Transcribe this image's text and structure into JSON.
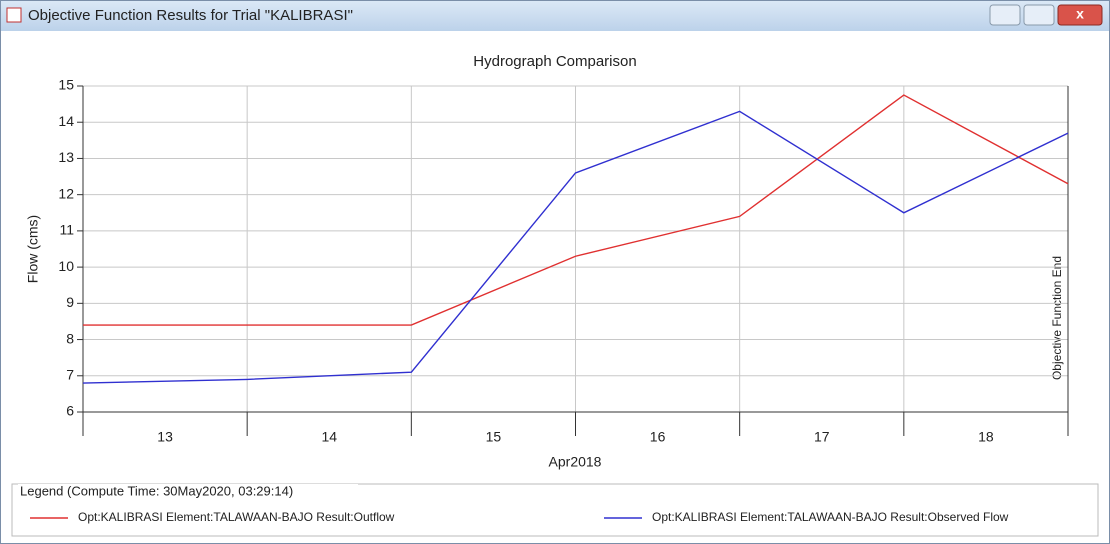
{
  "window": {
    "title": "Objective Function Results for Trial \"KALIBRASI\""
  },
  "chart_data": {
    "type": "line",
    "title": "Hydrograph Comparison",
    "xlabel": "Apr2018",
    "ylabel": "Flow (cms)",
    "annotation": "Objective Function End",
    "legend_title": "Legend (Compute Time: 30May2020, 03:29:14)",
    "x": [
      13,
      14,
      15,
      16,
      17,
      18,
      19
    ],
    "xlim": [
      13,
      19
    ],
    "xticks": [
      13,
      14,
      15,
      16,
      17,
      18
    ],
    "ylim": [
      6,
      15
    ],
    "yticks": [
      6,
      7,
      8,
      9,
      10,
      11,
      12,
      13,
      14,
      15
    ],
    "grid": true,
    "legend": "bottom",
    "series": [
      {
        "name": "Opt:KALIBRASI Element:TALAWAAN-BAJO Result:Outflow",
        "color": "#e03030",
        "values": [
          8.4,
          8.4,
          8.4,
          10.3,
          11.4,
          14.75,
          12.3
        ]
      },
      {
        "name": "Opt:KALIBRASI Element:TALAWAAN-BAJO Result:Observed Flow",
        "color": "#3030d0",
        "values": [
          6.8,
          6.9,
          7.1,
          12.6,
          14.3,
          11.5,
          13.7
        ]
      }
    ]
  }
}
